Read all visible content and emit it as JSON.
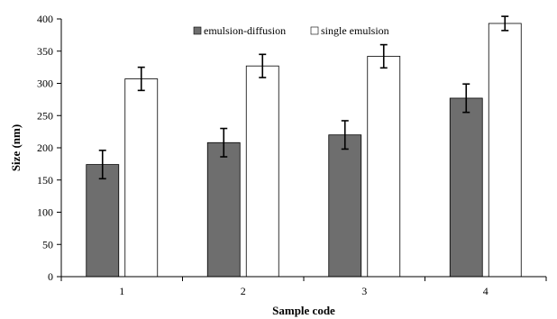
{
  "chart_data": {
    "type": "bar",
    "xlabel": "Sample code",
    "ylabel": "Size (nm)",
    "categories": [
      "1",
      "2",
      "3",
      "4"
    ],
    "ylim": [
      0,
      400
    ],
    "yticks": [
      0,
      50,
      100,
      150,
      200,
      250,
      300,
      350,
      400
    ],
    "grid": false,
    "legend_position": "top",
    "series": [
      {
        "name": "emulsion-diffusion",
        "color": "#6e6e6e",
        "values": [
          174,
          208,
          220,
          277
        ],
        "errors": [
          22,
          22,
          22,
          22
        ]
      },
      {
        "name": "single emulsion",
        "color": "#ffffff",
        "values": [
          307,
          327,
          342,
          393
        ],
        "errors": [
          18,
          18,
          18,
          11
        ]
      }
    ]
  }
}
